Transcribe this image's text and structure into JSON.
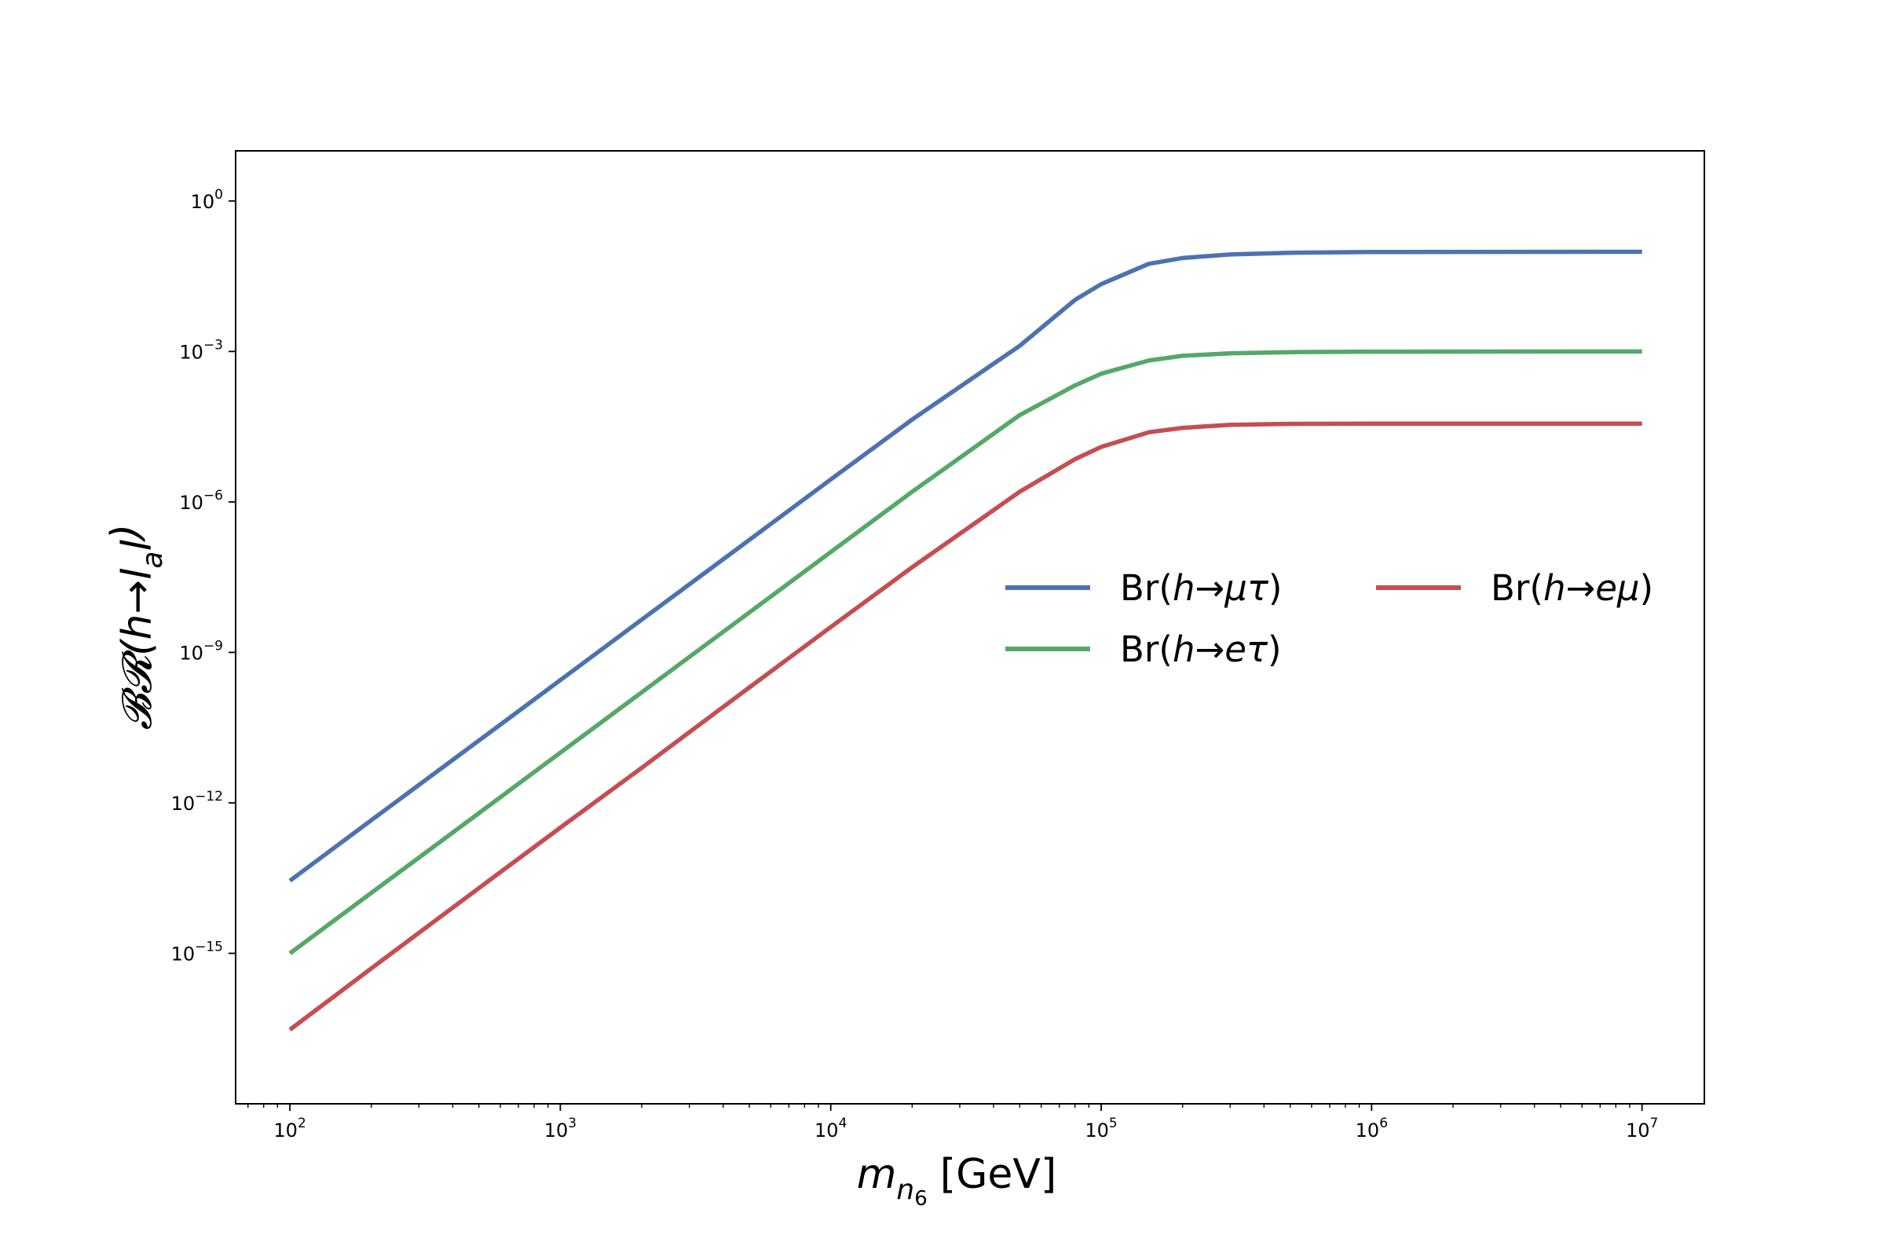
{
  "chart_data": {
    "type": "line",
    "xscale": "log",
    "yscale": "log",
    "xlabel": {
      "main": "m",
      "sub1": "n",
      "sub2": "6",
      "unit": "[GeV]"
    },
    "ylabel": {
      "main": "𝓑𝓡(h→l",
      "sub1": "a",
      "mid": "l",
      "sub2": "",
      "end": ")"
    },
    "xlim": [
      63,
      17000000
    ],
    "ylim": [
      1e-18,
      10
    ],
    "x_ticks": [
      {
        "base": "10",
        "exp": "2",
        "value": 100
      },
      {
        "base": "10",
        "exp": "3",
        "value": 1000
      },
      {
        "base": "10",
        "exp": "4",
        "value": 10000
      },
      {
        "base": "10",
        "exp": "5",
        "value": 100000
      },
      {
        "base": "10",
        "exp": "6",
        "value": 1000000
      },
      {
        "base": "10",
        "exp": "7",
        "value": 10000000
      }
    ],
    "y_ticks": [
      {
        "base": "10",
        "exp": "0",
        "value": 1
      },
      {
        "base": "10",
        "exp": "−3",
        "value": 0.001
      },
      {
        "base": "10",
        "exp": "−6",
        "value": 1e-06
      },
      {
        "base": "10",
        "exp": "−9",
        "value": 1e-09
      },
      {
        "base": "10",
        "exp": "−12",
        "value": 1e-12
      },
      {
        "base": "10",
        "exp": "−15",
        "value": 1e-15
      }
    ],
    "legend_placement": "center-right",
    "series": [
      {
        "name": "Br(h→μτ)",
        "label": {
          "pre": "Br(",
          "h": "h",
          "arrow": "→",
          "f": "μτ",
          "post": ")"
        },
        "color": "#4c72b0",
        "x": [
          100,
          200,
          500,
          1000,
          2000,
          5000,
          10000,
          20000,
          50000,
          80000,
          100000,
          150000,
          200000,
          300000,
          500000,
          1000000,
          10000000
        ],
        "y": [
          2.8e-14,
          4.5e-13,
          1.75e-11,
          2.8e-10,
          4.5e-09,
          1.75e-07,
          2.8e-06,
          4.4e-05,
          0.0013,
          0.0107,
          0.022,
          0.056,
          0.073,
          0.086,
          0.093,
          0.096,
          0.097
        ]
      },
      {
        "name": "Br(h→eτ)",
        "label": {
          "pre": "Br(",
          "h": "h",
          "arrow": "→",
          "f": "eτ",
          "post": ")"
        },
        "color": "#55a868",
        "x": [
          100,
          200,
          500,
          1000,
          2000,
          5000,
          10000,
          20000,
          50000,
          80000,
          100000,
          150000,
          200000,
          300000,
          500000,
          1000000,
          10000000
        ],
        "y": [
          1e-15,
          1.6e-14,
          6.25e-13,
          1e-11,
          1.6e-10,
          6.25e-09,
          1e-07,
          1.6e-06,
          5.4e-05,
          0.00021,
          0.00036,
          0.00066,
          0.00082,
          0.00092,
          0.00097,
          0.00099,
          0.001
        ]
      },
      {
        "name": "Br(h→eμ)",
        "label": {
          "pre": "Br(",
          "h": "h",
          "arrow": "→",
          "f": "eμ",
          "post": ")"
        },
        "color": "#c44e52",
        "x": [
          100,
          200,
          500,
          1000,
          2000,
          5000,
          10000,
          20000,
          50000,
          80000,
          100000,
          150000,
          200000,
          300000,
          500000,
          1000000,
          10000000
        ],
        "y": [
          3e-17,
          5e-16,
          2e-14,
          3.2e-13,
          5e-12,
          2e-10,
          3.2e-09,
          5e-08,
          1.6e-06,
          7.1e-06,
          1.25e-05,
          2.45e-05,
          3e-05,
          3.45e-05,
          3.6e-05,
          3.65e-05,
          3.65e-05
        ]
      }
    ]
  }
}
